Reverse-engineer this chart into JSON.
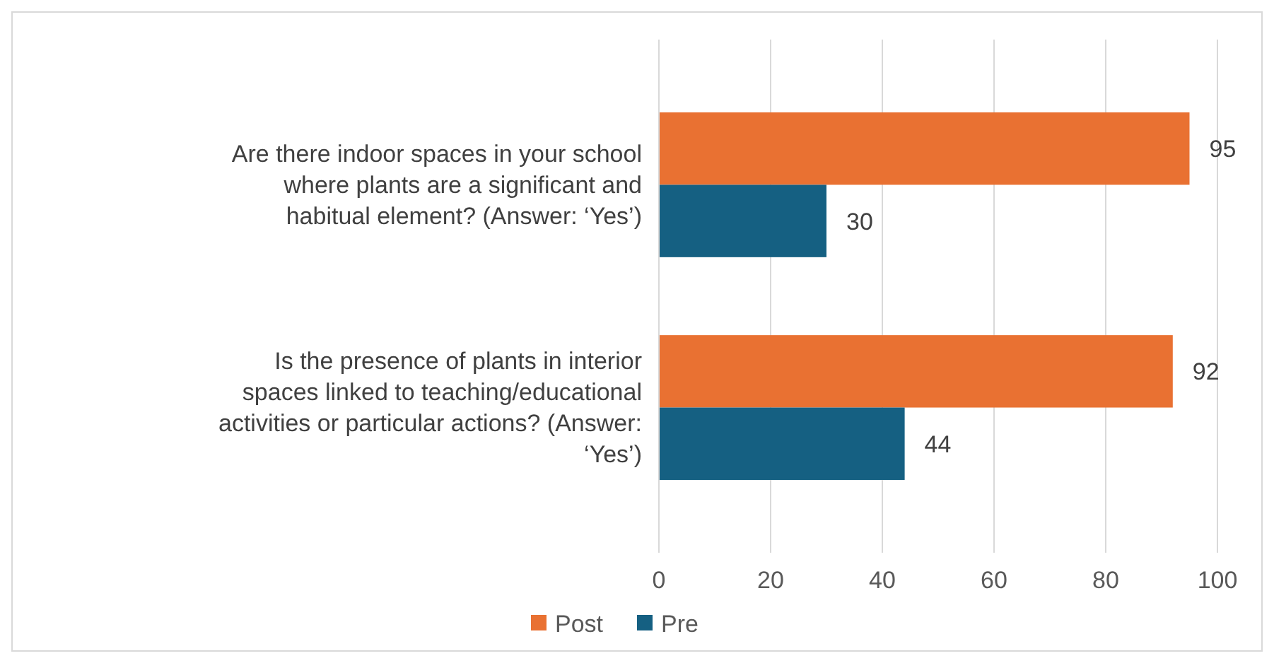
{
  "chart_data": {
    "type": "bar",
    "orientation": "horizontal",
    "categories": [
      "Are there indoor spaces in your school where plants are a significant and habitual element? (Answer: ‘Yes’)",
      "Is the presence of plants in interior spaces linked to teaching/educational activities or particular actions? (Answer: ‘Yes’)"
    ],
    "series": [
      {
        "name": "Post",
        "color": "#e97132",
        "values": [
          95,
          92
        ]
      },
      {
        "name": "Pre",
        "color": "#156082",
        "values": [
          30,
          44
        ]
      }
    ],
    "xlim": [
      0,
      100
    ],
    "xticks": [
      0,
      20,
      40,
      60,
      80,
      100
    ],
    "grid": "x",
    "data_labels": true,
    "legend": "bottom"
  }
}
